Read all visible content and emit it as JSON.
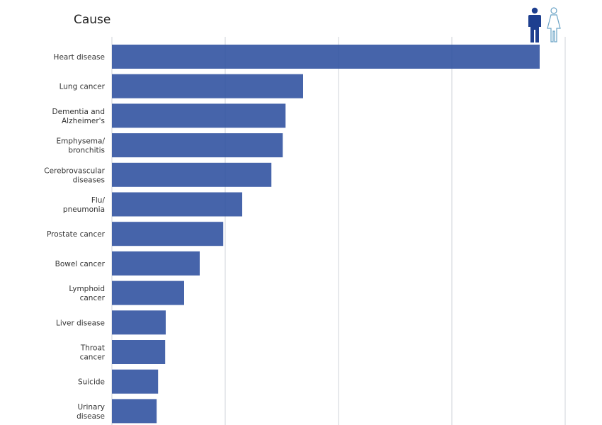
{
  "heading": "Cause",
  "toggles": {
    "male_icon": "male-figure-icon",
    "female_icon": "female-figure-icon",
    "active": "male"
  },
  "colors": {
    "bar": "#2c4f9e",
    "male_active": "#1e3f8f",
    "female_outline": "#6aa3c6",
    "grid": "#cfd3da"
  },
  "chart_data": {
    "type": "bar",
    "orientation": "horizontal",
    "categories": [
      [
        "Heart disease"
      ],
      [
        "Lung cancer"
      ],
      [
        "Dementia and",
        "Alzheimer's"
      ],
      [
        "Emphysema/",
        "bronchitis"
      ],
      [
        "Cerebrovascular",
        "diseases"
      ],
      [
        "Flu/",
        "pneumonia"
      ],
      [
        "Prostate cancer"
      ],
      [
        "Bowel cancer"
      ],
      [
        "Lymphoid",
        "cancer"
      ],
      [
        "Liver disease"
      ],
      [
        "Throat",
        "cancer"
      ],
      [
        "Suicide"
      ],
      [
        "Urinary",
        "disease"
      ]
    ],
    "values": [
      15.1,
      6.75,
      6.13,
      6.03,
      5.63,
      4.6,
      3.93,
      3.1,
      2.55,
      1.9,
      1.88,
      1.63,
      1.58
    ],
    "xlim": [
      0,
      16
    ],
    "grid_vertical": true,
    "gridline_count": 5,
    "xlabel": "",
    "ylabel": "",
    "tick_labels_shown": false
  }
}
